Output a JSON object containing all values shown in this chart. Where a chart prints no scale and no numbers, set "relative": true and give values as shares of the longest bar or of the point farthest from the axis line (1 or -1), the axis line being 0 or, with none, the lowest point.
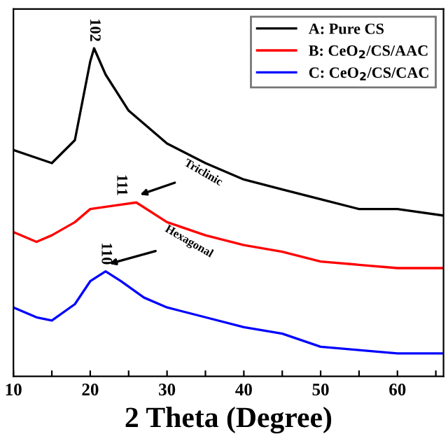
{
  "chart_data": {
    "type": "line",
    "xlabel": "2 Theta (Degree)",
    "relative": true,
    "xlim": [
      10,
      66
    ],
    "xticks": [
      10,
      {
        "value": 15,
        "label": null
      },
      20,
      {
        "value": 25,
        "label": null
      },
      30,
      {
        "value": 35,
        "label": null
      },
      40,
      {
        "value": 45,
        "label": null
      },
      50,
      {
        "value": 55,
        "label": null
      },
      60,
      {
        "value": 65,
        "label": null
      }
    ],
    "series": [
      {
        "name": "A: Pure CS",
        "color": "#000000",
        "x": [
          10,
          15,
          18,
          20,
          20.5,
          22,
          25,
          30,
          35,
          40,
          45,
          50,
          55,
          60,
          66
        ],
        "values": [
          0.69,
          0.65,
          0.72,
          0.96,
          1.0,
          0.92,
          0.81,
          0.71,
          0.65,
          0.6,
          0.57,
          0.54,
          0.51,
          0.51,
          0.49
        ]
      },
      {
        "name": "B: CeO$_{2}$/CS/AAC",
        "color": "#ff0000",
        "x": [
          10,
          13,
          15,
          18,
          20,
          23,
          26,
          30,
          35,
          40,
          45,
          50,
          55,
          60,
          66
        ],
        "values": [
          0.44,
          0.41,
          0.43,
          0.47,
          0.51,
          0.52,
          0.53,
          0.47,
          0.43,
          0.4,
          0.38,
          0.35,
          0.34,
          0.33,
          0.33
        ]
      },
      {
        "name": "C: CeO$_{2}$/CS/CAC",
        "color": "#0000ff",
        "x": [
          10,
          13,
          15,
          18,
          20,
          22,
          24,
          27,
          30,
          35,
          40,
          45,
          50,
          55,
          60,
          66
        ],
        "values": [
          0.21,
          0.18,
          0.17,
          0.22,
          0.29,
          0.32,
          0.29,
          0.24,
          0.21,
          0.18,
          0.15,
          0.13,
          0.09,
          0.08,
          0.07,
          0.07
        ]
      }
    ],
    "annotations": [
      {
        "text": "102",
        "x": 20.5,
        "y": 1.0
      },
      {
        "text": "111",
        "x": 24,
        "y": 0.53
      },
      {
        "text": "110",
        "x": 22,
        "y": 0.32
      },
      {
        "text": "Triclinic",
        "x": 26,
        "y": 0.53
      },
      {
        "text": "Hexagonal",
        "x": 22,
        "y": 0.32
      }
    ],
    "legend": "top right",
    "grid": false
  }
}
